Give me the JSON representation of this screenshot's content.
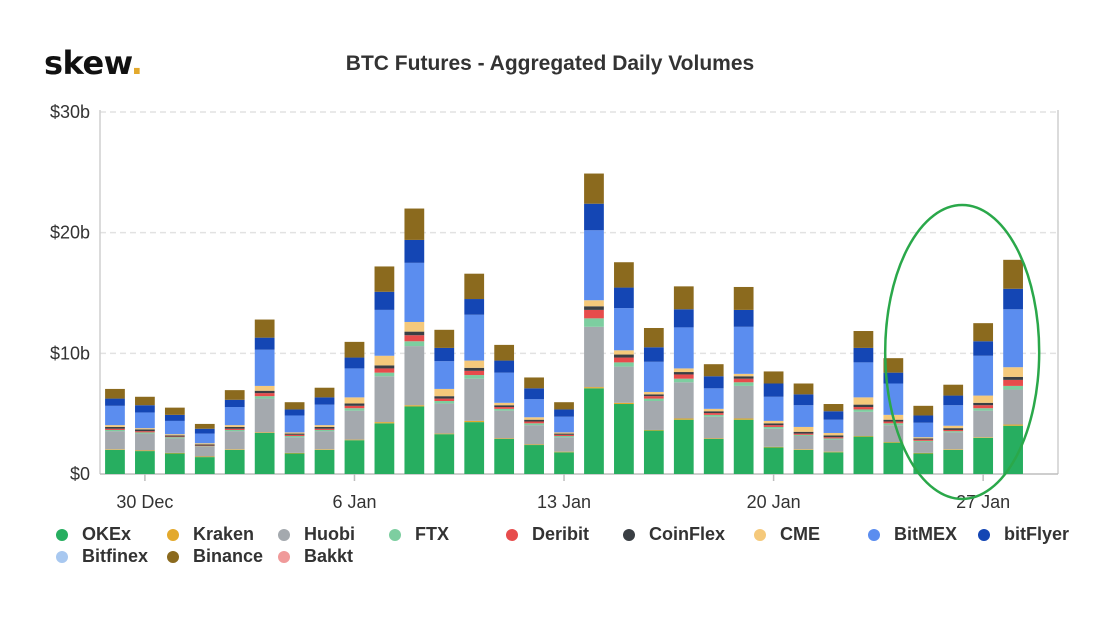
{
  "brand": {
    "text": "skew",
    "dot": "."
  },
  "chart_data": {
    "type": "bar",
    "stacked": true,
    "title": "BTC Futures - Aggregated Daily Volumes",
    "xlabel": "",
    "ylabel": "",
    "ylim": [
      0,
      30
    ],
    "y_unit": "b",
    "yticks": [
      "$0",
      "$10b",
      "$20b",
      "$30b"
    ],
    "xticks": [
      {
        "label": "30 Dec",
        "index": 1
      },
      {
        "label": "6 Jan",
        "index": 8
      },
      {
        "label": "13 Jan",
        "index": 15
      },
      {
        "label": "20 Jan",
        "index": 22
      },
      {
        "label": "27 Jan",
        "index": 29
      }
    ],
    "categories": [
      "29 Dec",
      "30 Dec",
      "31 Dec",
      "1 Jan",
      "2 Jan",
      "3 Jan",
      "4 Jan",
      "5 Jan",
      "6 Jan",
      "7 Jan",
      "8 Jan",
      "9 Jan",
      "10 Jan",
      "11 Jan",
      "12 Jan",
      "13 Jan",
      "14 Jan",
      "15 Jan",
      "16 Jan",
      "17 Jan",
      "18 Jan",
      "19 Jan",
      "20 Jan",
      "21 Jan",
      "22 Jan",
      "23 Jan",
      "24 Jan",
      "25 Jan",
      "26 Jan",
      "27 Jan",
      "28 Jan",
      "29 Jan"
    ],
    "grid": true,
    "legend_position": "bottom",
    "annotation": "green ellipse highlighting 26 Jan – 29 Jan",
    "series": [
      {
        "name": "OKEx",
        "color": "#27ae60",
        "values": [
          2.0,
          1.9,
          1.7,
          1.4,
          2.0,
          3.4,
          1.7,
          2.0,
          2.8,
          4.2,
          5.6,
          3.3,
          4.3,
          2.9,
          2.4,
          1.8,
          7.1,
          5.8,
          3.6,
          4.5,
          2.9,
          4.5,
          2.2,
          2.0,
          1.8,
          3.1,
          2.6,
          1.7,
          2.0,
          3.0,
          4.0,
          0
        ]
      },
      {
        "name": "Kraken",
        "color": "#e3a92c",
        "values": [
          0.05,
          0.05,
          0.05,
          0.05,
          0.05,
          0.05,
          0.05,
          0.05,
          0.05,
          0.1,
          0.1,
          0.05,
          0.1,
          0.05,
          0.05,
          0.05,
          0.1,
          0.1,
          0.05,
          0.1,
          0.05,
          0.1,
          0.05,
          0.05,
          0.05,
          0.05,
          0.05,
          0.05,
          0.05,
          0.05,
          0.1,
          0
        ]
      },
      {
        "name": "Huobi",
        "color": "#a4a9ae",
        "values": [
          1.5,
          1.4,
          1.2,
          0.8,
          1.5,
          2.8,
          1.3,
          1.5,
          2.4,
          3.8,
          4.9,
          2.5,
          3.5,
          2.3,
          1.6,
          1.2,
          5.0,
          3.0,
          2.4,
          3.0,
          1.8,
          2.7,
          1.5,
          1.1,
          1.0,
          2.0,
          1.4,
          0.9,
          1.4,
          2.2,
          2.9,
          0
        ]
      },
      {
        "name": "FTX",
        "color": "#7dcea0",
        "values": [
          0.1,
          0.1,
          0.1,
          0.05,
          0.1,
          0.2,
          0.1,
          0.1,
          0.2,
          0.3,
          0.4,
          0.2,
          0.3,
          0.15,
          0.15,
          0.1,
          0.7,
          0.35,
          0.2,
          0.3,
          0.15,
          0.3,
          0.15,
          0.1,
          0.1,
          0.2,
          0.15,
          0.1,
          0.1,
          0.2,
          0.3,
          0
        ]
      },
      {
        "name": "Deribit",
        "color": "#e74c4c",
        "values": [
          0.1,
          0.1,
          0.05,
          0.05,
          0.1,
          0.25,
          0.1,
          0.1,
          0.2,
          0.35,
          0.5,
          0.2,
          0.35,
          0.15,
          0.15,
          0.1,
          0.7,
          0.4,
          0.2,
          0.35,
          0.15,
          0.3,
          0.15,
          0.1,
          0.1,
          0.2,
          0.15,
          0.1,
          0.1,
          0.25,
          0.5,
          0
        ]
      },
      {
        "name": "CoinFlex",
        "color": "#3a3f44",
        "values": [
          0.15,
          0.15,
          0.1,
          0.1,
          0.15,
          0.2,
          0.1,
          0.15,
          0.2,
          0.25,
          0.3,
          0.2,
          0.25,
          0.15,
          0.15,
          0.1,
          0.3,
          0.25,
          0.15,
          0.2,
          0.15,
          0.2,
          0.15,
          0.15,
          0.15,
          0.2,
          0.15,
          0.1,
          0.15,
          0.2,
          0.25,
          0
        ]
      },
      {
        "name": "CME",
        "color": "#f5c97b",
        "values": [
          0.15,
          0.1,
          0.1,
          0.1,
          0.15,
          0.4,
          0.1,
          0.15,
          0.5,
          0.8,
          0.8,
          0.6,
          0.6,
          0.2,
          0.2,
          0.1,
          0.5,
          0.35,
          0.2,
          0.3,
          0.2,
          0.2,
          0.2,
          0.4,
          0.2,
          0.6,
          0.4,
          0.1,
          0.2,
          0.6,
          0.8,
          0
        ]
      },
      {
        "name": "BitMEX",
        "color": "#5b8def",
        "values": [
          1.6,
          1.3,
          1.1,
          0.8,
          1.5,
          3.0,
          1.4,
          1.7,
          2.4,
          3.8,
          4.9,
          2.3,
          3.8,
          2.5,
          1.5,
          1.3,
          5.8,
          3.5,
          2.5,
          3.4,
          1.7,
          3.9,
          2.0,
          1.8,
          1.1,
          2.9,
          2.6,
          1.2,
          1.7,
          3.3,
          4.8,
          0
        ]
      },
      {
        "name": "bitFlyer",
        "color": "#1446b4",
        "values": [
          0.6,
          0.6,
          0.5,
          0.4,
          0.6,
          1.0,
          0.5,
          0.6,
          0.9,
          1.5,
          1.9,
          1.1,
          1.3,
          1.0,
          0.9,
          0.6,
          2.2,
          1.7,
          1.2,
          1.5,
          1.0,
          1.4,
          1.1,
          0.9,
          0.7,
          1.2,
          0.9,
          0.6,
          0.8,
          1.2,
          1.7,
          0
        ]
      },
      {
        "name": "Bitfinex",
        "color": "#a8c8f0",
        "values": [
          0,
          0,
          0,
          0,
          0,
          0,
          0,
          0,
          0,
          0,
          0,
          0,
          0,
          0,
          0,
          0,
          0,
          0,
          0,
          0,
          0,
          0,
          0,
          0,
          0,
          0,
          0,
          0,
          0,
          0,
          0,
          0
        ]
      },
      {
        "name": "Binance",
        "color": "#8b6a1e",
        "values": [
          0.8,
          0.7,
          0.6,
          0.4,
          0.8,
          1.5,
          0.6,
          0.8,
          1.3,
          2.1,
          2.6,
          1.5,
          2.1,
          1.3,
          0.9,
          0.6,
          2.5,
          2.1,
          1.6,
          1.9,
          1.0,
          1.9,
          1.0,
          0.9,
          0.6,
          1.4,
          1.2,
          0.8,
          0.9,
          1.5,
          2.4,
          0
        ]
      },
      {
        "name": "Bakkt",
        "color": "#f09a9a",
        "values": [
          0,
          0,
          0,
          0,
          0,
          0,
          0,
          0,
          0,
          0,
          0,
          0,
          0,
          0,
          0,
          0,
          0,
          0,
          0,
          0,
          0,
          0,
          0,
          0,
          0,
          0,
          0,
          0,
          0,
          0,
          0,
          0
        ]
      }
    ]
  }
}
